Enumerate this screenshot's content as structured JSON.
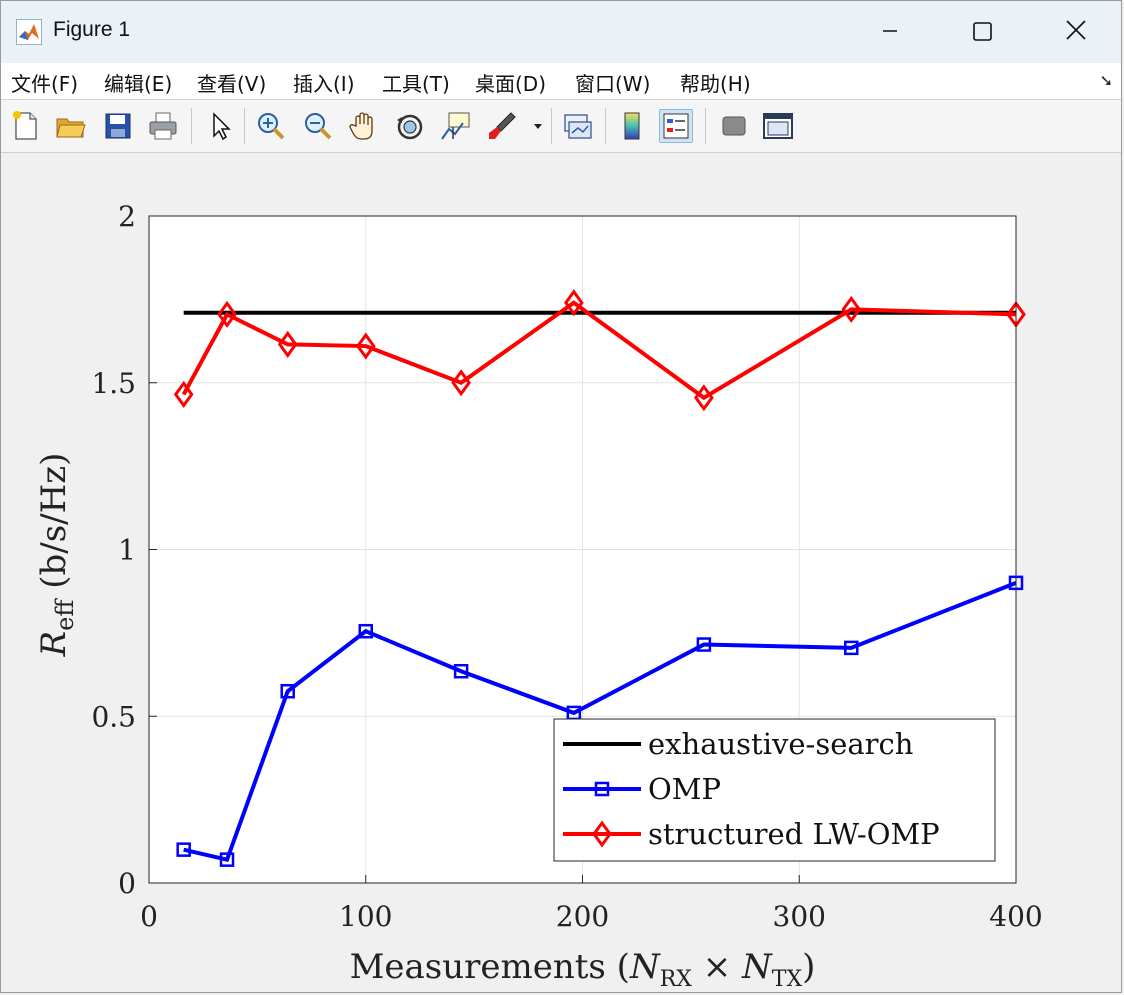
{
  "window": {
    "title": "Figure 1"
  },
  "menu": [
    "文件(F)",
    "编辑(E)",
    "查看(V)",
    "插入(I)",
    "工具(T)",
    "桌面(D)",
    "窗口(W)",
    "帮助(H)"
  ],
  "toolbar": {
    "buttons": [
      "new-figure",
      "open-file",
      "save",
      "print",
      "select-pointer",
      "zoom-in",
      "zoom-out",
      "pan",
      "rotate-3d",
      "data-cursor",
      "brush",
      "link-plot",
      "insert-colorbar",
      "insert-legend",
      "hide-plot-tools",
      "show-plot-tools"
    ],
    "pressed": "insert-legend"
  },
  "chart_data": {
    "type": "line",
    "xlabel_parts": [
      "Measurements (",
      "N",
      "RX",
      " × ",
      "N",
      "TX",
      ")"
    ],
    "ylabel_parts": [
      "R",
      "eff",
      " (b/s/Hz)"
    ],
    "xlim": [
      0,
      400
    ],
    "ylim": [
      0,
      2
    ],
    "xticks": [
      0,
      100,
      200,
      300,
      400
    ],
    "yticks": [
      0,
      0.5,
      1,
      1.5,
      2
    ],
    "xtick_labels": [
      "0",
      "100",
      "200",
      "300",
      "400"
    ],
    "ytick_labels": [
      "0",
      "0.5",
      "1",
      "1.5",
      "2"
    ],
    "grid": true,
    "legend_position": "bottom-right",
    "series": [
      {
        "name": "exhaustive-search",
        "color": "#000000",
        "marker": "none",
        "x": [
          16,
          400
        ],
        "y": [
          1.71,
          1.71
        ]
      },
      {
        "name": "OMP",
        "color": "#0000ff",
        "marker": "square",
        "x": [
          16,
          36,
          64,
          100,
          144,
          196,
          256,
          324,
          400
        ],
        "y": [
          0.1,
          0.07,
          0.575,
          0.755,
          0.635,
          0.51,
          0.715,
          0.705,
          0.9
        ]
      },
      {
        "name": "structured LW-OMP",
        "color": "#ff0000",
        "marker": "diamond",
        "x": [
          16,
          36,
          64,
          100,
          144,
          196,
          256,
          324,
          400
        ],
        "y": [
          1.465,
          1.705,
          1.615,
          1.61,
          1.5,
          1.74,
          1.455,
          1.72,
          1.705
        ]
      }
    ]
  }
}
